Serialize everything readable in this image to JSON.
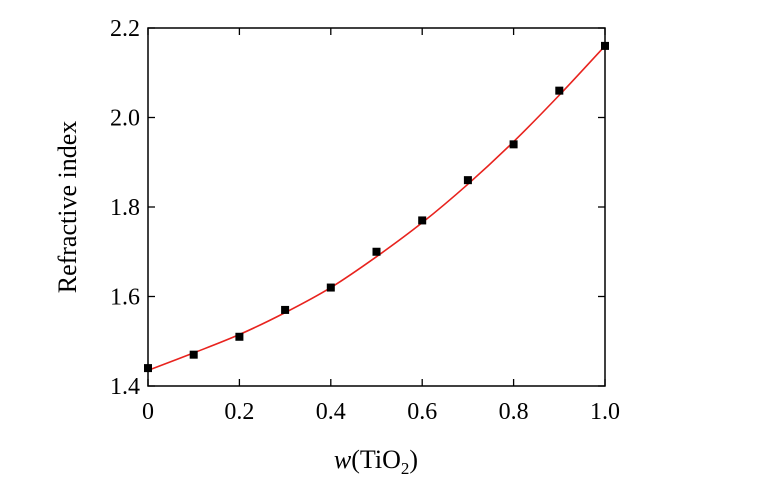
{
  "chart_data": {
    "type": "scatter",
    "title": "",
    "xlabel": {
      "italic": "w",
      "open": "(TiO",
      "sub": "2",
      "close": ")"
    },
    "ylabel": "Refractive index",
    "xlim": [
      0,
      1.0
    ],
    "ylim": [
      1.4,
      2.2
    ],
    "x_ticks": [
      "0",
      "0.2",
      "0.4",
      "0.6",
      "0.8",
      "1.0"
    ],
    "x_tick_values": [
      0,
      0.2,
      0.4,
      0.6,
      0.8,
      1.0
    ],
    "y_ticks": [
      "1.4",
      "1.6",
      "1.8",
      "2.0",
      "2.2"
    ],
    "y_tick_values": [
      1.4,
      1.6,
      1.8,
      2.0,
      2.2
    ],
    "grid": false,
    "legend": "none",
    "series": [
      {
        "marker": "square",
        "color": "#000000",
        "x": [
          0,
          0.1,
          0.2,
          0.3,
          0.4,
          0.5,
          0.6,
          0.7,
          0.8,
          0.9,
          1.0
        ],
        "y": [
          1.44,
          1.47,
          1.51,
          1.57,
          1.62,
          1.7,
          1.77,
          1.86,
          1.94,
          2.06,
          2.16
        ]
      }
    ],
    "fit": {
      "style": "line",
      "color": "#e8231e",
      "x": [
        0,
        0.1,
        0.2,
        0.3,
        0.4,
        0.5,
        0.6,
        0.7,
        0.8,
        0.9,
        1.0
      ],
      "y": [
        1.435,
        1.474,
        1.515,
        1.564,
        1.62,
        1.689,
        1.765,
        1.851,
        1.946,
        2.05,
        2.16
      ]
    }
  }
}
